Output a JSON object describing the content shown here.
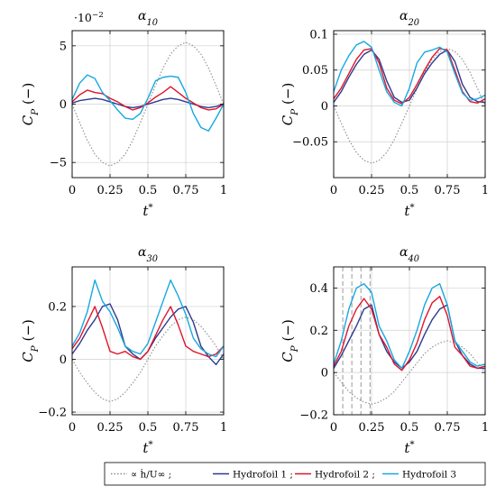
{
  "colors": {
    "hdot": "#8c8c8c",
    "hf1": "#2b3b8f",
    "hf2": "#e0152a",
    "hf3": "#17a8e0",
    "grid": "#d0d0d0",
    "vline": "#999999"
  },
  "legend": {
    "items": [
      {
        "label": "∝ ḣ/U∞ ;",
        "color": "#8c8c8c",
        "dash": true
      },
      {
        "label": "Hydrofoil 1 ;",
        "color": "#2b3b8f",
        "dash": false
      },
      {
        "label": "Hydrofoil 2 ;",
        "color": "#e0152a",
        "dash": false
      },
      {
        "label": "Hydrofoil 3",
        "color": "#17a8e0",
        "dash": false
      }
    ]
  },
  "chart_data": [
    {
      "type": "line",
      "title": "α10",
      "xlabel": "t*",
      "ylabel": "CP (−)",
      "scale_note": "·10−2",
      "xlim": [
        0,
        1
      ],
      "ylim": [
        -6.3,
        6.3
      ],
      "xticks": [
        0,
        0.25,
        0.5,
        0.75,
        1
      ],
      "xtick_labels": [
        "0",
        "0.25",
        "0.5",
        "0.75",
        "1"
      ],
      "yticks": [
        -5,
        0,
        5
      ],
      "ytick_labels": [
        "−5",
        "0",
        "5"
      ],
      "grid": true,
      "x": [
        0,
        0.05,
        0.1,
        0.15,
        0.2,
        0.25,
        0.3,
        0.35,
        0.4,
        0.45,
        0.5,
        0.55,
        0.6,
        0.65,
        0.7,
        0.75,
        0.8,
        0.85,
        0.9,
        0.95,
        1
      ],
      "series": [
        {
          "name": "∝ ḣ/U∞",
          "values": [
            0,
            -1.6,
            -3.1,
            -4.3,
            -5.0,
            -5.3,
            -5.0,
            -4.3,
            -3.1,
            -1.6,
            0,
            1.6,
            3.1,
            4.3,
            5.0,
            5.3,
            5.0,
            4.3,
            3.1,
            1.6,
            0
          ]
        },
        {
          "name": "Hydrofoil 1",
          "values": [
            0.1,
            0.3,
            0.4,
            0.5,
            0.4,
            0.2,
            0,
            -0.2,
            -0.3,
            -0.2,
            0,
            0.2,
            0.4,
            0.5,
            0.4,
            0.2,
            0,
            -0.2,
            -0.3,
            -0.2,
            0
          ]
        },
        {
          "name": "Hydrofoil 2",
          "values": [
            0.2,
            0.8,
            1.2,
            1.0,
            0.9,
            0.5,
            0.2,
            -0.2,
            -0.5,
            -0.3,
            0.1,
            0.6,
            1.0,
            1.5,
            1.0,
            0.5,
            0.1,
            -0.3,
            -0.5,
            -0.4,
            0
          ]
        },
        {
          "name": "Hydrofoil 3",
          "values": [
            0.4,
            1.8,
            2.5,
            2.2,
            1.0,
            0.3,
            -0.5,
            -1.2,
            -1.3,
            -0.8,
            0.5,
            2.0,
            2.3,
            2.4,
            2.3,
            1.0,
            -0.8,
            -2.0,
            -2.3,
            -1.2,
            0
          ]
        }
      ]
    },
    {
      "type": "line",
      "title": "α20",
      "xlabel": "t*",
      "ylabel": "CP (−)",
      "xlim": [
        0,
        1
      ],
      "ylim": [
        -0.1,
        0.105
      ],
      "xticks": [
        0,
        0.25,
        0.5,
        0.75,
        1
      ],
      "xtick_labels": [
        "0",
        "0.25",
        "0.5",
        "0.75",
        "1"
      ],
      "yticks": [
        -0.05,
        0,
        0.05,
        0.1
      ],
      "ytick_labels": [
        "−0.05",
        "0",
        "0.05",
        "0.1"
      ],
      "grid": true,
      "x": [
        0,
        0.05,
        0.1,
        0.15,
        0.2,
        0.25,
        0.3,
        0.35,
        0.4,
        0.45,
        0.5,
        0.55,
        0.6,
        0.65,
        0.7,
        0.75,
        0.8,
        0.85,
        0.9,
        0.95,
        1
      ],
      "series": [
        {
          "name": "∝ ḣ/U∞",
          "values": [
            0,
            -0.024,
            -0.047,
            -0.065,
            -0.076,
            -0.08,
            -0.076,
            -0.065,
            -0.047,
            -0.024,
            0,
            0.024,
            0.047,
            0.065,
            0.076,
            0.08,
            0.076,
            0.065,
            0.047,
            0.024,
            0
          ]
        },
        {
          "name": "Hydrofoil 1",
          "values": [
            0.005,
            0.02,
            0.04,
            0.058,
            0.072,
            0.078,
            0.065,
            0.035,
            0.012,
            0.005,
            0.008,
            0.025,
            0.045,
            0.06,
            0.072,
            0.078,
            0.062,
            0.03,
            0.012,
            0.006,
            0.005
          ]
        },
        {
          "name": "Hydrofoil 2",
          "values": [
            0.01,
            0.025,
            0.045,
            0.065,
            0.078,
            0.08,
            0.06,
            0.025,
            0.008,
            0.003,
            0.012,
            0.03,
            0.05,
            0.068,
            0.08,
            0.078,
            0.05,
            0.02,
            0.006,
            0.004,
            0.01
          ]
        },
        {
          "name": "Hydrofoil 3",
          "values": [
            0.02,
            0.05,
            0.07,
            0.085,
            0.09,
            0.082,
            0.05,
            0.02,
            0.005,
            0,
            0.025,
            0.06,
            0.075,
            0.078,
            0.082,
            0.075,
            0.045,
            0.018,
            0.008,
            0.01,
            0.015
          ]
        }
      ]
    },
    {
      "type": "line",
      "title": "α30",
      "xlabel": "t*",
      "ylabel": "CP (−)",
      "xlim": [
        0,
        1
      ],
      "ylim": [
        -0.21,
        0.35
      ],
      "xticks": [
        0,
        0.25,
        0.5,
        0.75,
        1
      ],
      "xtick_labels": [
        "0",
        "0.25",
        "0.5",
        "0.75",
        "1"
      ],
      "yticks": [
        -0.2,
        0,
        0.2
      ],
      "ytick_labels": [
        "−0.2",
        "0",
        "0.2"
      ],
      "grid": true,
      "x": [
        0,
        0.05,
        0.1,
        0.15,
        0.2,
        0.25,
        0.3,
        0.35,
        0.4,
        0.45,
        0.5,
        0.55,
        0.6,
        0.65,
        0.7,
        0.75,
        0.8,
        0.85,
        0.9,
        0.95,
        1
      ],
      "series": [
        {
          "name": "∝ ḣ/U∞",
          "values": [
            0,
            -0.05,
            -0.09,
            -0.125,
            -0.15,
            -0.16,
            -0.15,
            -0.125,
            -0.09,
            -0.05,
            0,
            0.05,
            0.09,
            0.125,
            0.15,
            0.16,
            0.15,
            0.125,
            0.09,
            0.05,
            0
          ]
        },
        {
          "name": "Hydrofoil 1",
          "values": [
            0.02,
            0.06,
            0.11,
            0.15,
            0.2,
            0.21,
            0.15,
            0.05,
            0.02,
            0,
            0.03,
            0.08,
            0.12,
            0.16,
            0.19,
            0.2,
            0.14,
            0.05,
            0.01,
            -0.02,
            0.02
          ]
        },
        {
          "name": "Hydrofoil 2",
          "values": [
            0.04,
            0.08,
            0.14,
            0.2,
            0.12,
            0.03,
            0.02,
            0.03,
            0.01,
            0,
            0.03,
            0.09,
            0.15,
            0.2,
            0.13,
            0.05,
            0.03,
            0.02,
            0.01,
            0.02,
            0.05
          ]
        },
        {
          "name": "Hydrofoil 3",
          "values": [
            0.05,
            0.1,
            0.18,
            0.3,
            0.22,
            0.18,
            0.12,
            0.05,
            0.03,
            0.02,
            0.06,
            0.14,
            0.22,
            0.3,
            0.24,
            0.17,
            0.08,
            0.04,
            0.02,
            0.01,
            0.05
          ]
        }
      ]
    },
    {
      "type": "line",
      "title": "α40",
      "xlabel": "t*",
      "ylabel": "CP (−)",
      "xlim": [
        0,
        1
      ],
      "ylim": [
        -0.2,
        0.5
      ],
      "xticks": [
        0,
        0.25,
        0.5,
        0.75,
        1
      ],
      "xtick_labels": [
        "0",
        "0.25",
        "0.5",
        "0.75",
        "1"
      ],
      "yticks": [
        -0.2,
        0,
        0.2,
        0.4
      ],
      "ytick_labels": [
        "−0.2",
        "0",
        "0.2",
        "0.4"
      ],
      "grid": true,
      "vlines": [
        0.06,
        0.12,
        0.18,
        0.24
      ],
      "x": [
        0,
        0.05,
        0.1,
        0.15,
        0.2,
        0.25,
        0.3,
        0.35,
        0.4,
        0.45,
        0.5,
        0.55,
        0.6,
        0.65,
        0.7,
        0.75,
        0.8,
        0.85,
        0.9,
        0.95,
        1
      ],
      "series": [
        {
          "name": "∝ ḣ/U∞",
          "values": [
            0,
            -0.045,
            -0.09,
            -0.12,
            -0.14,
            -0.15,
            -0.14,
            -0.12,
            -0.09,
            -0.045,
            0,
            0.045,
            0.09,
            0.12,
            0.14,
            0.15,
            0.14,
            0.12,
            0.09,
            0.045,
            0
          ]
        },
        {
          "name": "Hydrofoil 1",
          "values": [
            0.02,
            0.08,
            0.15,
            0.22,
            0.3,
            0.32,
            0.18,
            0.1,
            0.05,
            0.02,
            0.05,
            0.1,
            0.18,
            0.25,
            0.3,
            0.32,
            0.15,
            0.08,
            0.04,
            0.02,
            0.02
          ]
        },
        {
          "name": "Hydrofoil 2",
          "values": [
            0.03,
            0.1,
            0.22,
            0.3,
            0.35,
            0.3,
            0.18,
            0.12,
            0.04,
            0.01,
            0.06,
            0.14,
            0.25,
            0.33,
            0.36,
            0.27,
            0.12,
            0.08,
            0.03,
            0.02,
            0.03
          ]
        },
        {
          "name": "Hydrofoil 3",
          "values": [
            0.04,
            0.15,
            0.3,
            0.4,
            0.42,
            0.38,
            0.22,
            0.15,
            0.06,
            0.02,
            0.1,
            0.2,
            0.32,
            0.4,
            0.42,
            0.32,
            0.15,
            0.1,
            0.05,
            0.03,
            0.04
          ]
        }
      ]
    }
  ]
}
